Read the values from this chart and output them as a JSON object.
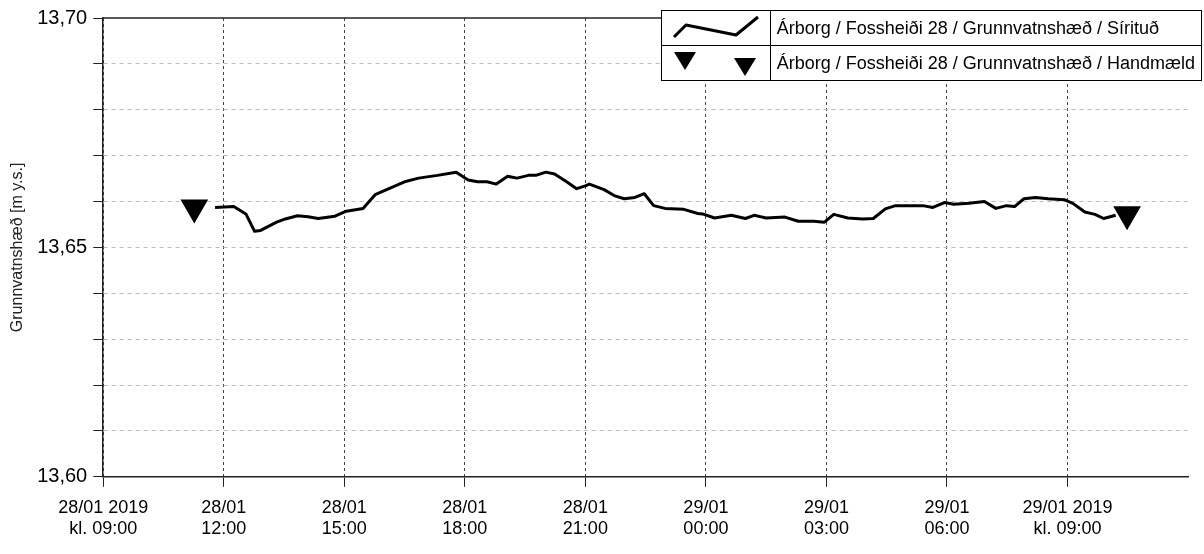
{
  "chart_data": {
    "type": "line",
    "ylabel": "Grunnvatnshæð [m y.s.]",
    "legend": "top right",
    "grid": true,
    "xlim": [
      "2019-01-28T09:00",
      "2019-01-29T12:00"
    ],
    "xticks": [
      {
        "value": "2019-01-28T09:00",
        "label": "28/01 2019\nkl. 09:00"
      },
      {
        "value": "2019-01-28T12:00",
        "label": "28/01\n12:00"
      },
      {
        "value": "2019-01-28T15:00",
        "label": "28/01\n15:00"
      },
      {
        "value": "2019-01-28T18:00",
        "label": "28/01\n18:00"
      },
      {
        "value": "2019-01-28T21:00",
        "label": "28/01\n21:00"
      },
      {
        "value": "2019-01-29T00:00",
        "label": "29/01\n00:00"
      },
      {
        "value": "2019-01-29T03:00",
        "label": "29/01\n03:00"
      },
      {
        "value": "2019-01-29T06:00",
        "label": "29/01\n06:00"
      },
      {
        "value": "2019-01-29T09:00",
        "label": "29/01 2019\nkl. 09:00"
      }
    ],
    "ylim": [
      13.6,
      13.7
    ],
    "yticks": [
      {
        "value": 13.6,
        "label": "13,60"
      },
      {
        "value": 13.61,
        "label": null
      },
      {
        "value": 13.62,
        "label": null
      },
      {
        "value": 13.63,
        "label": null
      },
      {
        "value": 13.64,
        "label": null
      },
      {
        "value": 13.65,
        "label": "13,65"
      },
      {
        "value": 13.66,
        "label": null
      },
      {
        "value": 13.67,
        "label": null
      },
      {
        "value": 13.68,
        "label": null
      },
      {
        "value": 13.69,
        "label": null
      },
      {
        "value": 13.7,
        "label": "13,70"
      }
    ],
    "series": [
      {
        "name": "Árborg / Fossheiði 28 / Grunnvatnshæð / Sírituð",
        "color": "#000000",
        "marker": "none",
        "line_style": "solid",
        "x": [
          "2019-01-28T11:47",
          "2019-01-28T12:15",
          "2019-01-28T12:33",
          "2019-01-28T12:46",
          "2019-01-28T12:55",
          "2019-01-28T13:19",
          "2019-01-28T13:32",
          "2019-01-28T13:50",
          "2019-01-28T14:06",
          "2019-01-28T14:21",
          "2019-01-28T14:46",
          "2019-01-28T15:03",
          "2019-01-28T15:28",
          "2019-01-28T15:46",
          "2019-01-28T16:11",
          "2019-01-28T16:30",
          "2019-01-28T16:51",
          "2019-01-28T17:19",
          "2019-01-28T17:47",
          "2019-01-28T18:05",
          "2019-01-28T18:19",
          "2019-01-28T18:33",
          "2019-01-28T18:47",
          "2019-01-28T19:04",
          "2019-01-28T19:18",
          "2019-01-28T19:35",
          "2019-01-28T19:46",
          "2019-01-28T20:01",
          "2019-01-28T20:14",
          "2019-01-28T20:32",
          "2019-01-28T20:47",
          "2019-01-28T21:00",
          "2019-01-28T21:06",
          "2019-01-28T21:28",
          "2019-01-28T21:43",
          "2019-01-28T21:58",
          "2019-01-28T22:14",
          "2019-01-28T22:28",
          "2019-01-28T22:42",
          "2019-01-28T22:59",
          "2019-01-28T23:27",
          "2019-01-28T23:48",
          "2019-01-28T23:55",
          "2019-01-29T00:13",
          "2019-01-29T00:38",
          "2019-01-29T00:59",
          "2019-01-29T01:12",
          "2019-01-29T01:30",
          "2019-01-29T01:58",
          "2019-01-29T02:18",
          "2019-01-29T02:41",
          "2019-01-29T02:57",
          "2019-01-29T03:11",
          "2019-01-29T03:32",
          "2019-01-29T03:54",
          "2019-01-29T04:10",
          "2019-01-29T04:28",
          "2019-01-29T04:43",
          "2019-01-29T05:24",
          "2019-01-29T05:39",
          "2019-01-29T05:57",
          "2019-01-29T06:10",
          "2019-01-29T06:33",
          "2019-01-29T06:56",
          "2019-01-29T07:13",
          "2019-01-29T07:29",
          "2019-01-29T07:41",
          "2019-01-29T07:55",
          "2019-01-29T08:12",
          "2019-01-29T08:31",
          "2019-01-29T08:55",
          "2019-01-29T09:08",
          "2019-01-29T09:26",
          "2019-01-29T09:41",
          "2019-01-29T09:54",
          "2019-01-29T10:12"
        ],
        "values": [
          13.6587,
          13.6589,
          13.6573,
          13.6535,
          13.6537,
          13.6555,
          13.6562,
          13.6569,
          13.6567,
          13.6563,
          13.6568,
          13.6579,
          13.6585,
          13.6615,
          13.6631,
          13.6643,
          13.6651,
          13.6657,
          13.6664,
          13.6647,
          13.6643,
          13.6643,
          13.6638,
          13.6655,
          13.6651,
          13.6657,
          13.6657,
          13.6664,
          13.666,
          13.6643,
          13.6628,
          13.6634,
          13.6638,
          13.6626,
          13.6613,
          13.6606,
          13.6609,
          13.6617,
          13.6591,
          13.6585,
          13.6583,
          13.6574,
          13.6573,
          13.6564,
          13.657,
          13.6563,
          13.657,
          13.6564,
          13.6566,
          13.6557,
          13.6557,
          13.6555,
          13.6572,
          13.6564,
          13.6562,
          13.6563,
          13.6584,
          13.6591,
          13.6591,
          13.6587,
          13.6598,
          13.6594,
          13.6596,
          13.66,
          13.6585,
          13.6591,
          13.6589,
          13.6606,
          13.6609,
          13.6606,
          13.6604,
          13.6596,
          13.6577,
          13.6572,
          13.6563,
          13.657
        ]
      },
      {
        "name": "Árborg / Fossheiði 28 / Grunnvatnshæð / Handmæld",
        "type": "scatter",
        "color": "#000000",
        "marker": "triangle",
        "x": [
          "2019-01-28T11:16",
          "2019-01-29T10:29"
        ],
        "values": [
          13.6587,
          13.6572
        ]
      }
    ]
  }
}
